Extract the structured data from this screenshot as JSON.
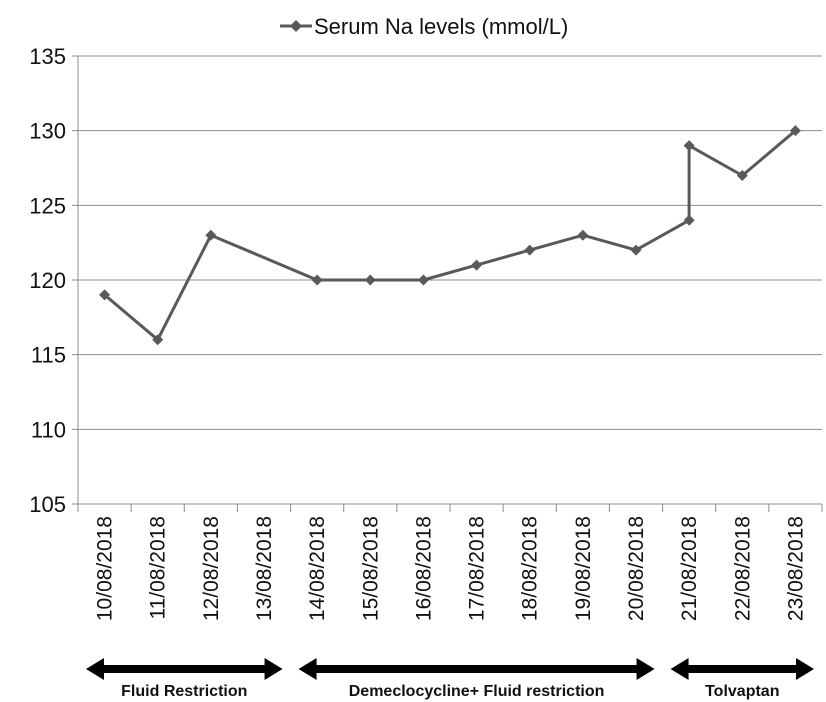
{
  "chart_data": {
    "type": "line",
    "legend": {
      "entries": [
        "Serum Na levels (mmol/L)"
      ],
      "position": "top"
    },
    "categories": [
      "10/08/2018",
      "11/08/2018",
      "12/08/2018",
      "13/08/2018",
      "14/08/2018",
      "15/08/2018",
      "16/08/2018",
      "17/08/2018",
      "18/08/2018",
      "19/08/2018",
      "20/08/2018",
      "21/08/2018",
      "22/08/2018",
      "23/08/2018"
    ],
    "series": [
      {
        "name": "Serum Na levels (mmol/L)",
        "color": "#595959",
        "marker": "diamond",
        "points": [
          {
            "x": "10/08/2018",
            "y": 119
          },
          {
            "x": "11/08/2018",
            "y": 116
          },
          {
            "x": "12/08/2018",
            "y": 123
          },
          {
            "x": "14/08/2018",
            "y": 120
          },
          {
            "x": "15/08/2018",
            "y": 120
          },
          {
            "x": "16/08/2018",
            "y": 120
          },
          {
            "x": "17/08/2018",
            "y": 121
          },
          {
            "x": "18/08/2018",
            "y": 122
          },
          {
            "x": "19/08/2018",
            "y": 123
          },
          {
            "x": "20/08/2018",
            "y": 122
          },
          {
            "x": "21/08/2018",
            "y": 124
          },
          {
            "x": "21/08/2018",
            "y": 129
          },
          {
            "x": "22/08/2018",
            "y": 127
          },
          {
            "x": "23/08/2018",
            "y": 130
          }
        ]
      }
    ],
    "y_ticks": [
      105,
      110,
      115,
      120,
      125,
      130,
      135
    ],
    "ylim": [
      105,
      135
    ],
    "grid": "horizontal",
    "phases": [
      {
        "label": "Fluid Restriction",
        "from": "10/08/2018",
        "to": "13/08/2018"
      },
      {
        "label": "Demeclocycline+ Fluid restriction",
        "from": "14/08/2018",
        "to": "20/08/2018"
      },
      {
        "label": "Tolvaptan",
        "from": "21/08/2018",
        "to": "23/08/2018"
      }
    ]
  }
}
